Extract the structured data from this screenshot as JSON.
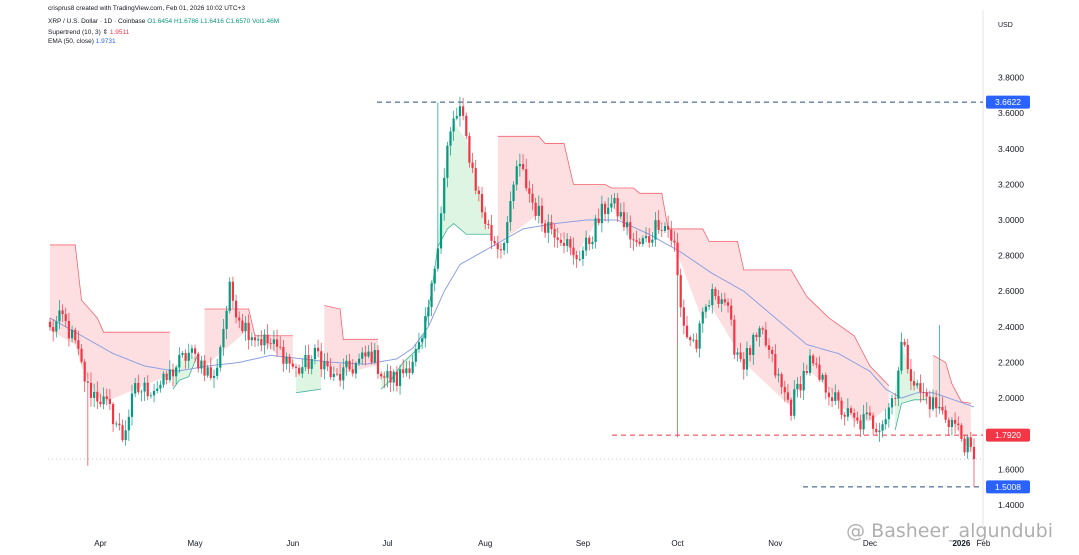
{
  "header": {
    "created": "crisprus8 created with TradingView.com, Feb 01, 2026 10:02 UTC+3",
    "symbol_line": "XRP / U.S. Dollar · 1D · Coinbase",
    "ohlc": {
      "o": "O1.6454",
      "h": "H1.6786",
      "l": "L1.6416",
      "c": "C1.6570",
      "vol": "Vol1.46M"
    },
    "supertrend": {
      "label": "Supertrend (10, 3)",
      "arrow": "⇕",
      "value": "1.9511"
    },
    "ema": {
      "label": "EMA (50, close)",
      "value": "1.9731"
    }
  },
  "watermark": "@ Basheer_algundubi",
  "colors": {
    "up": "#089981",
    "down": "#f23645",
    "bear_fill": "#fdd9dc",
    "bull_fill": "#d7f3dd",
    "ema": "#8ea0e0",
    "bg": "#ffffff"
  },
  "chart_data": {
    "type": "candlestick",
    "currency": "USD",
    "y_ticks": [
      "3.8000",
      "3.6000",
      "3.4000",
      "3.2000",
      "3.0000",
      "2.8000",
      "2.6000",
      "2.4000",
      "2.2000",
      "2.0000",
      "1.6000",
      "1.4000"
    ],
    "ylim": [
      1.36,
      3.91
    ],
    "x_labels": [
      "Apr",
      "May",
      "Jun",
      "Jul",
      "Aug",
      "Sep",
      "Oct",
      "Nov",
      "Dec",
      "2026",
      "Feb"
    ],
    "price_labels": [
      {
        "value": 3.6622,
        "text": "3.6622",
        "color": "#2962ff"
      },
      {
        "value": 1.792,
        "text": "1.7920",
        "color": "#f23645"
      },
      {
        "value": 1.5008,
        "text": "1.5008",
        "color": "#2962ff"
      }
    ],
    "current_price": 1.657,
    "anchors": [
      [
        0,
        2.38
      ],
      [
        4,
        2.45
      ],
      [
        8,
        2.3
      ],
      [
        12,
        2.05
      ],
      [
        16,
        2.0
      ],
      [
        20,
        1.9
      ],
      [
        23,
        1.78
      ],
      [
        27,
        2.04
      ],
      [
        31,
        2.05
      ],
      [
        36,
        2.08
      ],
      [
        40,
        2.18
      ],
      [
        44,
        2.25
      ],
      [
        48,
        2.2
      ],
      [
        52,
        2.1
      ],
      [
        55,
        2.4
      ],
      [
        57,
        2.6
      ],
      [
        61,
        2.42
      ],
      [
        65,
        2.35
      ],
      [
        70,
        2.3
      ],
      [
        74,
        2.25
      ],
      [
        78,
        2.15
      ],
      [
        82,
        2.2
      ],
      [
        85,
        2.25
      ],
      [
        90,
        2.1
      ],
      [
        94,
        2.15
      ],
      [
        98,
        2.2
      ],
      [
        102,
        2.25
      ],
      [
        106,
        2.12
      ],
      [
        110,
        2.1
      ],
      [
        114,
        2.2
      ],
      [
        118,
        2.3
      ],
      [
        121,
        2.6
      ],
      [
        123,
        2.9
      ],
      [
        126,
        3.4
      ],
      [
        128,
        3.55
      ],
      [
        130,
        3.62
      ],
      [
        132,
        3.45
      ],
      [
        135,
        3.2
      ],
      [
        137,
        3.05
      ],
      [
        140,
        2.9
      ],
      [
        143,
        2.85
      ],
      [
        146,
        3.05
      ],
      [
        148,
        3.3
      ],
      [
        150,
        3.25
      ],
      [
        153,
        3.1
      ],
      [
        156,
        3.0
      ],
      [
        160,
        2.95
      ],
      [
        163,
        2.9
      ],
      [
        166,
        2.78
      ],
      [
        170,
        2.85
      ],
      [
        174,
        3.0
      ],
      [
        177,
        3.1
      ],
      [
        180,
        3.05
      ],
      [
        183,
        2.95
      ],
      [
        186,
        2.85
      ],
      [
        190,
        2.9
      ],
      [
        193,
        3.0
      ],
      [
        196,
        2.95
      ],
      [
        198,
        2.85
      ],
      [
        200,
        2.5
      ],
      [
        202,
        2.35
      ],
      [
        205,
        2.3
      ],
      [
        208,
        2.5
      ],
      [
        211,
        2.6
      ],
      [
        214,
        2.55
      ],
      [
        217,
        2.3
      ],
      [
        220,
        2.2
      ],
      [
        223,
        2.3
      ],
      [
        226,
        2.35
      ],
      [
        229,
        2.2
      ],
      [
        232,
        2.05
      ],
      [
        235,
        1.95
      ],
      [
        238,
        2.1
      ],
      [
        241,
        2.2
      ],
      [
        244,
        2.1
      ],
      [
        247,
        2.05
      ],
      [
        250,
        1.95
      ],
      [
        253,
        1.9
      ],
      [
        256,
        1.85
      ],
      [
        259,
        1.88
      ],
      [
        262,
        1.85
      ],
      [
        265,
        1.9
      ],
      [
        268,
        2.05
      ],
      [
        270,
        2.3
      ],
      [
        272,
        2.2
      ],
      [
        275,
        2.05
      ],
      [
        278,
        2.0
      ],
      [
        281,
        1.95
      ],
      [
        284,
        1.9
      ],
      [
        287,
        1.85
      ],
      [
        289,
        1.78
      ],
      [
        291,
        1.72
      ],
      [
        293,
        1.66
      ]
    ],
    "supertrend_segments": [
      {
        "trend": "bear",
        "points": [
          [
            0,
            2.86
          ],
          [
            8,
            2.86
          ],
          [
            10,
            2.55
          ],
          [
            15,
            2.45
          ],
          [
            17,
            2.37
          ],
          [
            38,
            2.37
          ]
        ]
      },
      {
        "trend": "bull",
        "points": [
          [
            39,
            2.05
          ],
          [
            41,
            2.1
          ],
          [
            44,
            2.12
          ],
          [
            47,
            2.25
          ]
        ]
      },
      {
        "trend": "bear",
        "points": [
          [
            49,
            2.5
          ],
          [
            63,
            2.5
          ],
          [
            65,
            2.35
          ],
          [
            77,
            2.35
          ]
        ]
      },
      {
        "trend": "bull",
        "points": [
          [
            78,
            2.03
          ],
          [
            82,
            2.04
          ],
          [
            86,
            2.05
          ]
        ]
      },
      {
        "trend": "bear",
        "points": [
          [
            87,
            2.52
          ],
          [
            92,
            2.5
          ],
          [
            93,
            2.33
          ],
          [
            104,
            2.33
          ]
        ]
      },
      {
        "trend": "bull",
        "points": [
          [
            105,
            2.05
          ],
          [
            108,
            2.1
          ],
          [
            112,
            2.2
          ],
          [
            118,
            2.3
          ],
          [
            121,
            2.6
          ],
          [
            123,
            2.85
          ],
          [
            126,
            2.95
          ],
          [
            128,
            2.98
          ],
          [
            132,
            2.92
          ],
          [
            140,
            2.92
          ]
        ]
      },
      {
        "trend": "bear",
        "points": [
          [
            142,
            3.47
          ],
          [
            155,
            3.47
          ],
          [
            157,
            3.43
          ],
          [
            163,
            3.43
          ],
          [
            166,
            3.2
          ],
          [
            176,
            3.2
          ],
          [
            178,
            3.18
          ],
          [
            185,
            3.18
          ],
          [
            187,
            3.15
          ],
          [
            194,
            3.15
          ],
          [
            196,
            2.95
          ],
          [
            207,
            2.95
          ],
          [
            209,
            2.88
          ],
          [
            218,
            2.88
          ],
          [
            220,
            2.72
          ],
          [
            235,
            2.72
          ],
          [
            240,
            2.57
          ],
          [
            247,
            2.45
          ],
          [
            255,
            2.35
          ],
          [
            260,
            2.18
          ],
          [
            266,
            2.07
          ]
        ]
      },
      {
        "trend": "bull",
        "points": [
          [
            268,
            1.82
          ],
          [
            270,
            1.97
          ],
          [
            274,
            1.99
          ],
          [
            278,
            1.99
          ]
        ]
      },
      {
        "trend": "bear",
        "points": [
          [
            280,
            2.24
          ],
          [
            284,
            2.2
          ],
          [
            286,
            2.08
          ],
          [
            289,
            1.98
          ],
          [
            292,
            1.97
          ]
        ]
      }
    ],
    "ema_anchors": [
      [
        0,
        2.45
      ],
      [
        10,
        2.35
      ],
      [
        20,
        2.25
      ],
      [
        30,
        2.18
      ],
      [
        40,
        2.15
      ],
      [
        50,
        2.18
      ],
      [
        60,
        2.2
      ],
      [
        70,
        2.24
      ],
      [
        80,
        2.22
      ],
      [
        90,
        2.2
      ],
      [
        100,
        2.19
      ],
      [
        110,
        2.22
      ],
      [
        115,
        2.28
      ],
      [
        120,
        2.4
      ],
      [
        125,
        2.6
      ],
      [
        130,
        2.75
      ],
      [
        140,
        2.85
      ],
      [
        150,
        2.95
      ],
      [
        160,
        2.98
      ],
      [
        170,
        3.0
      ],
      [
        180,
        3.0
      ],
      [
        190,
        2.92
      ],
      [
        200,
        2.82
      ],
      [
        210,
        2.7
      ],
      [
        220,
        2.6
      ],
      [
        230,
        2.45
      ],
      [
        240,
        2.3
      ],
      [
        250,
        2.25
      ],
      [
        260,
        2.15
      ],
      [
        265,
        2.05
      ],
      [
        270,
        2.0
      ],
      [
        275,
        2.03
      ],
      [
        280,
        2.03
      ],
      [
        285,
        2.0
      ],
      [
        293,
        1.95
      ]
    ]
  }
}
